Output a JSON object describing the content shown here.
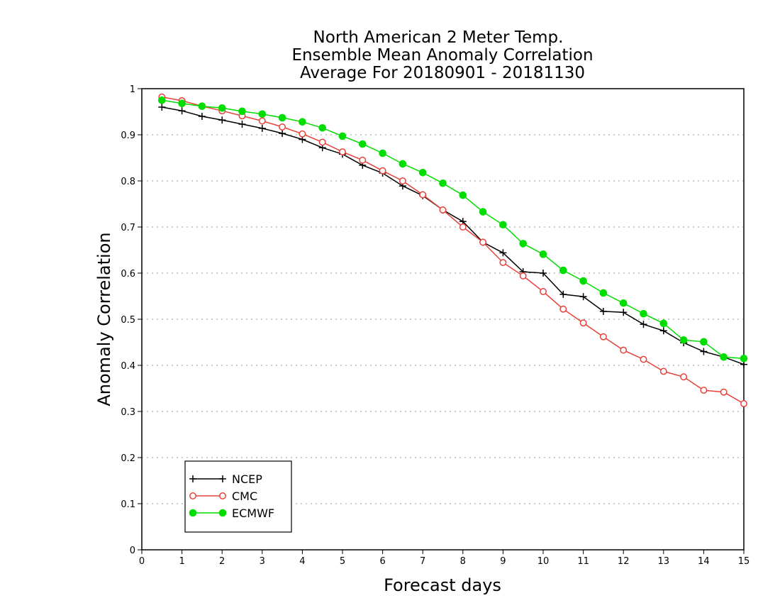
{
  "chart_data": {
    "type": "line",
    "title": [
      "North American 2 Meter Temp.",
      "Ensemble Mean Anomaly Correlation",
      "Average For 20180901 - 20181130"
    ],
    "xlabel": "Forecast days",
    "ylabel": "Anomaly Correlation",
    "xlim": [
      0,
      15
    ],
    "ylim": [
      0,
      1
    ],
    "x_ticks": [
      0,
      1,
      2,
      3,
      4,
      5,
      6,
      7,
      8,
      9,
      10,
      11,
      12,
      13,
      14,
      15
    ],
    "y_ticks": [
      0,
      0.1,
      0.2,
      0.3,
      0.4,
      0.5,
      0.6,
      0.7,
      0.8,
      0.9,
      1
    ],
    "grid": "horizontal dotted",
    "legend": "bottom-left",
    "x": [
      0.5,
      1,
      1.5,
      2,
      2.5,
      3,
      3.5,
      4,
      4.5,
      5,
      5.5,
      6,
      6.5,
      7,
      7.5,
      8,
      8.5,
      9,
      9.5,
      10,
      10.5,
      11,
      11.5,
      12,
      12.5,
      13,
      13.5,
      14,
      14.5,
      15
    ],
    "series": [
      {
        "name": "NCEP",
        "color": "#000000",
        "marker": "plus",
        "values": [
          0.96,
          0.952,
          0.94,
          0.932,
          0.923,
          0.914,
          0.903,
          0.89,
          0.872,
          0.858,
          0.834,
          0.817,
          0.789,
          0.768,
          0.737,
          0.712,
          0.667,
          0.644,
          0.603,
          0.6,
          0.554,
          0.549,
          0.517,
          0.515,
          0.489,
          0.475,
          0.449,
          0.43,
          0.418,
          0.402
        ]
      },
      {
        "name": "CMC",
        "color": "#e8403a",
        "marker": "open-circle",
        "values": [
          0.982,
          0.974,
          0.962,
          0.952,
          0.941,
          0.93,
          0.917,
          0.902,
          0.884,
          0.863,
          0.845,
          0.822,
          0.8,
          0.77,
          0.737,
          0.7,
          0.667,
          0.623,
          0.594,
          0.56,
          0.522,
          0.492,
          0.462,
          0.433,
          0.413,
          0.387,
          0.375,
          0.346,
          0.342,
          0.317
        ]
      },
      {
        "name": "ECMWF",
        "color": "#00dd00",
        "marker": "filled-circle",
        "values": [
          0.975,
          0.968,
          0.962,
          0.958,
          0.951,
          0.945,
          0.937,
          0.928,
          0.915,
          0.897,
          0.88,
          0.86,
          0.837,
          0.818,
          0.795,
          0.769,
          0.733,
          0.705,
          0.664,
          0.641,
          0.606,
          0.583,
          0.557,
          0.535,
          0.512,
          0.491,
          0.455,
          0.451,
          0.418,
          0.415
        ]
      }
    ]
  }
}
